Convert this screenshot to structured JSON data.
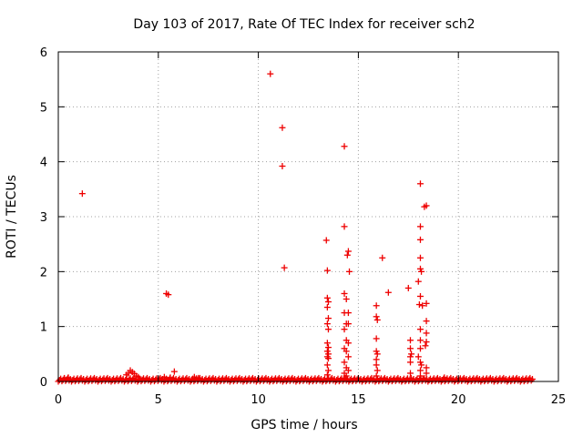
{
  "chart_data": {
    "type": "scatter",
    "title": "Day 103 of 2017, Rate Of TEC Index for receiver sch2",
    "xlabel": "GPS time / hours",
    "ylabel": "ROTI / TECUs",
    "xlim": [
      0,
      25
    ],
    "ylim": [
      0,
      6
    ],
    "x_ticks": [
      0,
      5,
      10,
      15,
      20,
      25
    ],
    "y_ticks": [
      0,
      1,
      2,
      3,
      4,
      5,
      6
    ],
    "grid": true,
    "marker": "+",
    "color": "#ee0000",
    "baseline": {
      "x_start": 0.0,
      "x_end": 23.7,
      "y_low": 0.0,
      "y_high": 0.06
    },
    "series": [
      {
        "name": "ROTI",
        "points": [
          [
            1.2,
            3.42
          ],
          [
            5.4,
            1.6
          ],
          [
            5.5,
            1.58
          ],
          [
            5.8,
            0.18
          ],
          [
            3.4,
            0.12
          ],
          [
            3.5,
            0.15
          ],
          [
            3.6,
            0.2
          ],
          [
            3.7,
            0.17
          ],
          [
            3.8,
            0.14
          ],
          [
            3.9,
            0.1
          ],
          [
            4.0,
            0.08
          ],
          [
            5.3,
            0.08
          ],
          [
            5.6,
            0.07
          ],
          [
            6.8,
            0.08
          ],
          [
            7.0,
            0.06
          ],
          [
            0.3,
            0.06
          ],
          [
            0.5,
            0.07
          ],
          [
            10.6,
            5.6
          ],
          [
            11.2,
            4.62
          ],
          [
            11.2,
            3.92
          ],
          [
            11.3,
            2.07
          ],
          [
            13.4,
            2.57
          ],
          [
            13.45,
            2.02
          ],
          [
            13.45,
            1.52
          ],
          [
            13.5,
            1.45
          ],
          [
            13.45,
            1.35
          ],
          [
            13.5,
            1.15
          ],
          [
            13.45,
            1.05
          ],
          [
            13.5,
            0.95
          ],
          [
            13.45,
            0.7
          ],
          [
            13.5,
            0.62
          ],
          [
            13.45,
            0.55
          ],
          [
            13.5,
            0.5
          ],
          [
            13.45,
            0.45
          ],
          [
            13.5,
            0.42
          ],
          [
            13.45,
            0.3
          ],
          [
            13.5,
            0.2
          ],
          [
            13.45,
            0.12
          ],
          [
            13.5,
            0.05
          ],
          [
            14.3,
            4.28
          ],
          [
            14.3,
            2.82
          ],
          [
            14.5,
            2.37
          ],
          [
            14.45,
            2.3
          ],
          [
            14.55,
            2.0
          ],
          [
            14.3,
            1.6
          ],
          [
            14.4,
            1.5
          ],
          [
            14.3,
            1.25
          ],
          [
            14.5,
            1.25
          ],
          [
            14.4,
            1.05
          ],
          [
            14.5,
            1.05
          ],
          [
            14.3,
            0.95
          ],
          [
            14.4,
            0.75
          ],
          [
            14.5,
            0.7
          ],
          [
            14.3,
            0.6
          ],
          [
            14.4,
            0.55
          ],
          [
            14.5,
            0.45
          ],
          [
            14.3,
            0.35
          ],
          [
            14.4,
            0.25
          ],
          [
            14.5,
            0.2
          ],
          [
            14.3,
            0.15
          ],
          [
            14.4,
            0.1
          ],
          [
            15.9,
            1.38
          ],
          [
            15.9,
            1.18
          ],
          [
            15.95,
            1.12
          ],
          [
            15.9,
            0.78
          ],
          [
            15.9,
            0.55
          ],
          [
            15.95,
            0.5
          ],
          [
            15.9,
            0.4
          ],
          [
            15.9,
            0.3
          ],
          [
            15.95,
            0.2
          ],
          [
            15.9,
            0.1
          ],
          [
            16.2,
            2.25
          ],
          [
            16.5,
            1.62
          ],
          [
            17.5,
            1.7
          ],
          [
            17.6,
            0.75
          ],
          [
            17.6,
            0.6
          ],
          [
            17.65,
            0.5
          ],
          [
            17.6,
            0.45
          ],
          [
            17.6,
            0.35
          ],
          [
            17.6,
            0.15
          ],
          [
            18.1,
            3.6
          ],
          [
            18.4,
            3.2
          ],
          [
            18.3,
            3.18
          ],
          [
            18.1,
            2.82
          ],
          [
            18.1,
            2.58
          ],
          [
            18.1,
            2.25
          ],
          [
            18.1,
            2.05
          ],
          [
            18.15,
            2.0
          ],
          [
            18.0,
            1.82
          ],
          [
            18.1,
            1.55
          ],
          [
            18.05,
            1.4
          ],
          [
            18.2,
            1.38
          ],
          [
            18.4,
            1.42
          ],
          [
            18.4,
            1.1
          ],
          [
            18.1,
            0.95
          ],
          [
            18.4,
            0.88
          ],
          [
            18.1,
            0.75
          ],
          [
            18.4,
            0.72
          ],
          [
            18.35,
            0.65
          ],
          [
            18.1,
            0.6
          ],
          [
            18.0,
            0.45
          ],
          [
            18.1,
            0.35
          ],
          [
            18.15,
            0.3
          ],
          [
            18.4,
            0.25
          ],
          [
            18.1,
            0.2
          ],
          [
            18.4,
            0.15
          ],
          [
            18.1,
            0.1
          ],
          [
            19.3,
            0.07
          ]
        ]
      }
    ]
  }
}
